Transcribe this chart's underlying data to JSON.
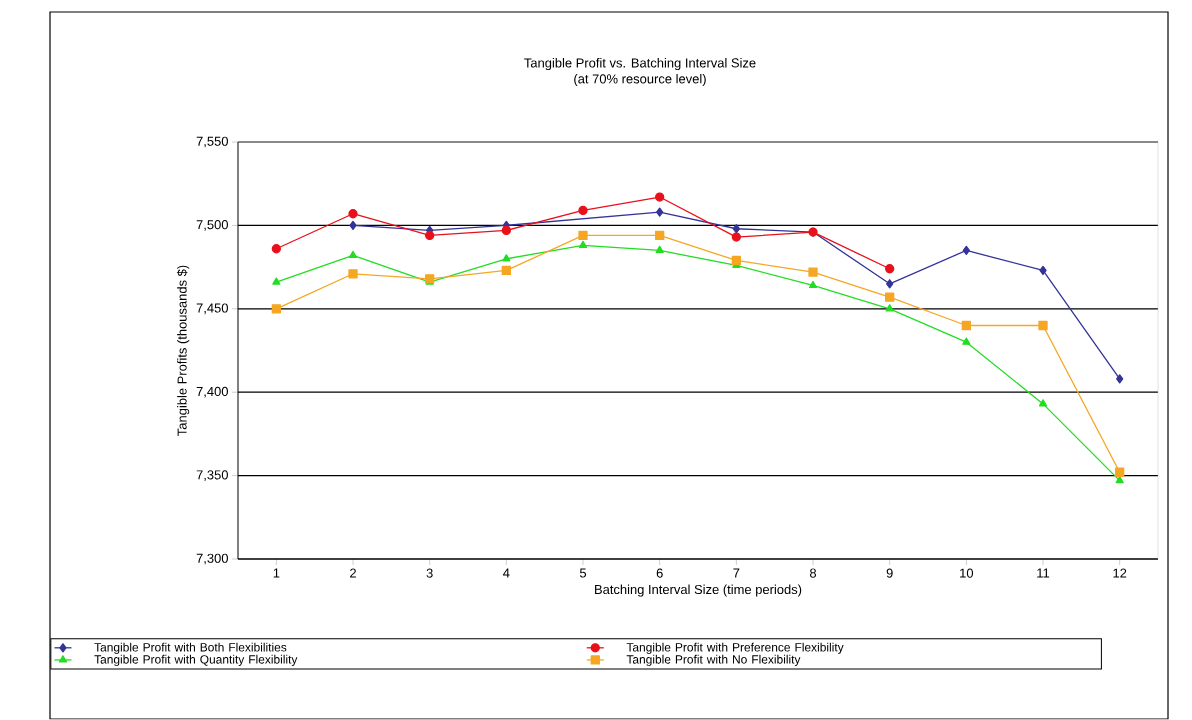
{
  "chart_data": {
    "type": "line",
    "title": "Tangible Profit vs. Batching Interval Size",
    "subtitle": "(at 70% resource level)",
    "xlabel": "Batching Interval Size (time periods)",
    "ylabel": "Tangible Profits (thousands $)",
    "categories": [
      "1",
      "2",
      "3",
      "4",
      "5",
      "6",
      "7",
      "8",
      "9",
      "10",
      "11",
      "12"
    ],
    "series": [
      {
        "name": "Tangible Profit with Both Flexibilities",
        "color": "#333399",
        "marker": "diamond",
        "values": [
          null,
          7500,
          7497,
          7500,
          null,
          7508,
          7498,
          7496,
          7465,
          7485,
          7473,
          7408
        ]
      },
      {
        "name": "Tangible Profit with Preference Flexibility",
        "color": "#e8101a",
        "marker": "circle",
        "values": [
          7486,
          7507,
          7494,
          7497,
          7509,
          7517,
          7493,
          7496,
          7474,
          null,
          null,
          null
        ]
      },
      {
        "name": "Tangible Profit with Quantity Flexibility",
        "color": "#22dd22",
        "marker": "triangle",
        "values": [
          7466,
          7482,
          7466,
          7480,
          7488,
          7485,
          7476,
          7464,
          7450,
          7430,
          7393,
          7347
        ]
      },
      {
        "name": "Tangible Profit with No Flexibility",
        "color": "#f5a623",
        "marker": "square",
        "values": [
          7450,
          7471,
          7468,
          7473,
          7494,
          7494,
          7479,
          7472,
          7457,
          7440,
          7440,
          7352
        ]
      }
    ],
    "ylim": [
      7300,
      7550
    ],
    "yticks": [
      {
        "value": 7300,
        "label": "7,300"
      },
      {
        "value": 7350,
        "label": "7,350"
      },
      {
        "value": 7400,
        "label": "7,400"
      },
      {
        "value": 7450,
        "label": "7,450"
      },
      {
        "value": 7500,
        "label": "7,500"
      },
      {
        "value": 7550,
        "label": "7,550"
      }
    ],
    "grid": "y",
    "legend": "bottom"
  }
}
